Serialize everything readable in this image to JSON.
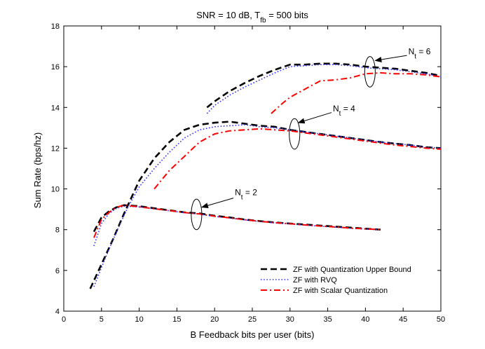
{
  "chart_data": {
    "type": "line",
    "title_parts": {
      "prefix": "SNR = 10 dB, T",
      "sub": "fb",
      "suffix": " = 500 bits"
    },
    "xlabel": "B Feedback bits per user (bits)",
    "ylabel": "Sum Rate (bps/hz)",
    "xlim": [
      0,
      50
    ],
    "ylim": [
      4,
      18
    ],
    "xticks": [
      0,
      5,
      10,
      15,
      20,
      25,
      30,
      35,
      40,
      45,
      50
    ],
    "yticks": [
      4,
      6,
      8,
      10,
      12,
      14,
      16,
      18
    ],
    "grid": false,
    "legend_placement": "bottom-right",
    "legend": [
      {
        "label": "ZF with Quantization Upper Bound",
        "color": "#000000",
        "style": "dashed"
      },
      {
        "label": "ZF with RVQ",
        "color": "#3333ff",
        "style": "dotted"
      },
      {
        "label": "ZF with Scalar Quantization",
        "color": "#ff0000",
        "style": "dashdot"
      }
    ],
    "series": [
      {
        "legend_index": 0,
        "group": "Nt2",
        "x": [
          4,
          5,
          6,
          7,
          8,
          10,
          12,
          14,
          16,
          18,
          20,
          22,
          24,
          26,
          28,
          30,
          32,
          34,
          36,
          38,
          40,
          42
        ],
        "y": [
          7.9,
          8.6,
          8.9,
          9.1,
          9.2,
          9.15,
          9.05,
          8.95,
          8.85,
          8.8,
          8.68,
          8.6,
          8.5,
          8.42,
          8.35,
          8.3,
          8.25,
          8.2,
          8.15,
          8.1,
          8.05,
          8.0
        ]
      },
      {
        "legend_index": 1,
        "group": "Nt2",
        "x": [
          4,
          5,
          6,
          7,
          8,
          10,
          12,
          14,
          16,
          18,
          20,
          22,
          24,
          26,
          28,
          30,
          32,
          34,
          36,
          38,
          40,
          42
        ],
        "y": [
          7.2,
          8.3,
          8.8,
          9.05,
          9.15,
          9.12,
          9.02,
          8.93,
          8.83,
          8.76,
          8.65,
          8.57,
          8.48,
          8.4,
          8.33,
          8.28,
          8.22,
          8.17,
          8.12,
          8.07,
          8.03,
          7.99
        ]
      },
      {
        "legend_index": 2,
        "group": "Nt2",
        "x": [
          4,
          5,
          6,
          7,
          8,
          10,
          12,
          14,
          16,
          18,
          20,
          22,
          24,
          26,
          28,
          30,
          32,
          34,
          36,
          38,
          40,
          42
        ],
        "y": [
          7.6,
          8.5,
          8.85,
          9.1,
          9.2,
          9.12,
          9.03,
          8.94,
          8.84,
          8.77,
          8.66,
          8.58,
          8.49,
          8.41,
          8.34,
          8.29,
          8.23,
          8.18,
          8.13,
          8.08,
          8.04,
          8.0
        ]
      },
      {
        "legend_index": 0,
        "group": "Nt4",
        "x": [
          3.5,
          5,
          6.5,
          8,
          10,
          12,
          14,
          16,
          18,
          20,
          22,
          24,
          26,
          28,
          30,
          32,
          34,
          36,
          38,
          40,
          42,
          44,
          46,
          48,
          50
        ],
        "y": [
          5.1,
          6.3,
          7.5,
          8.8,
          10.4,
          11.5,
          12.3,
          12.9,
          13.15,
          13.25,
          13.3,
          13.2,
          13.1,
          13.05,
          12.9,
          12.8,
          12.7,
          12.6,
          12.5,
          12.4,
          12.3,
          12.22,
          12.15,
          12.05,
          12.0
        ]
      },
      {
        "legend_index": 1,
        "group": "Nt4",
        "x": [
          4,
          5.5,
          7,
          8.5,
          10,
          12,
          14,
          16,
          18,
          20,
          22,
          24,
          26,
          28,
          30,
          32,
          34,
          36,
          38,
          40,
          42,
          44,
          46,
          48,
          50
        ],
        "y": [
          5.2,
          6.6,
          7.9,
          9.1,
          10.1,
          11.0,
          11.8,
          12.5,
          12.9,
          13.05,
          13.1,
          13.15,
          13.05,
          13.0,
          12.9,
          12.8,
          12.7,
          12.6,
          12.5,
          12.4,
          12.3,
          12.22,
          12.15,
          12.05,
          12.0
        ]
      },
      {
        "legend_index": 2,
        "group": "Nt4",
        "x": [
          12,
          14,
          16,
          18,
          20,
          22,
          24,
          26,
          28,
          30,
          32,
          34,
          36,
          38,
          40,
          42,
          44,
          46,
          48,
          50
        ],
        "y": [
          10.0,
          10.9,
          11.6,
          12.3,
          12.7,
          12.85,
          12.9,
          12.95,
          12.9,
          12.85,
          12.75,
          12.65,
          12.55,
          12.45,
          12.35,
          12.25,
          12.15,
          12.08,
          12.0,
          11.95
        ]
      },
      {
        "legend_index": 0,
        "group": "Nt6",
        "x": [
          19,
          20,
          22,
          24,
          26,
          28,
          30,
          32,
          34,
          36,
          38,
          40,
          42,
          44,
          46,
          48,
          50
        ],
        "y": [
          14.0,
          14.3,
          14.8,
          15.2,
          15.55,
          15.85,
          16.1,
          16.1,
          16.15,
          16.15,
          16.1,
          16.0,
          15.95,
          15.9,
          15.8,
          15.7,
          15.55
        ]
      },
      {
        "legend_index": 1,
        "group": "Nt6",
        "x": [
          19,
          20,
          22,
          24,
          26,
          28,
          30,
          32,
          34,
          36,
          38,
          40,
          42,
          44,
          46,
          48,
          50
        ],
        "y": [
          13.7,
          14.1,
          14.6,
          15.0,
          15.35,
          15.7,
          16.0,
          16.05,
          16.1,
          16.1,
          16.05,
          15.95,
          15.9,
          15.85,
          15.75,
          15.65,
          15.5
        ]
      },
      {
        "legend_index": 2,
        "group": "Nt6",
        "x": [
          27.5,
          29,
          30,
          31,
          32,
          34,
          36,
          38,
          40,
          42,
          44,
          46,
          48,
          50
        ],
        "y": [
          13.7,
          14.2,
          14.5,
          14.7,
          14.9,
          15.3,
          15.35,
          15.45,
          15.65,
          15.7,
          15.65,
          15.65,
          15.6,
          15.5
        ]
      }
    ],
    "annotations": [
      {
        "base": "N",
        "sub": "t",
        "suffix": " = 2",
        "ellipse": {
          "cx": 17.6,
          "cy": 8.75,
          "rx": 0.7,
          "ry": 0.75
        },
        "text_x": 22.5,
        "text_y": 9.7,
        "arrow_from": [
          22.5,
          9.55
        ],
        "arrow_to": [
          18.3,
          9.1
        ]
      },
      {
        "base": "N",
        "sub": "t",
        "suffix": " = 4",
        "ellipse": {
          "cx": 30.6,
          "cy": 12.7,
          "rx": 0.7,
          "ry": 0.75
        },
        "text_x": 35.5,
        "text_y": 13.8,
        "arrow_from": [
          35.5,
          13.75
        ],
        "arrow_to": [
          31.1,
          13.25
        ]
      },
      {
        "base": "N",
        "sub": "t",
        "suffix": " = 6",
        "ellipse": {
          "cx": 40.6,
          "cy": 15.75,
          "rx": 0.7,
          "ry": 0.75
        },
        "text_x": 45.5,
        "text_y": 16.6,
        "arrow_from": [
          45.5,
          16.55
        ],
        "arrow_to": [
          41.3,
          16.3
        ]
      }
    ]
  }
}
